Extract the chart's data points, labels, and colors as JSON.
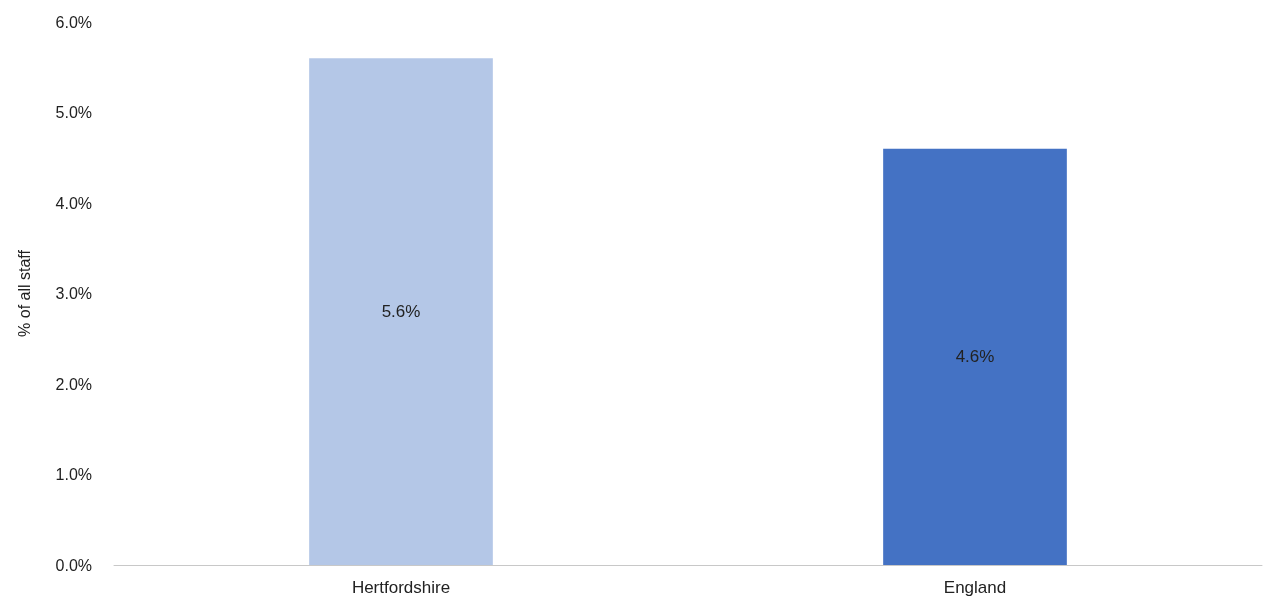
{
  "chart_data": {
    "type": "bar",
    "ylabel": "% of all staff",
    "categories": [
      "Hertfordshire",
      "England"
    ],
    "values": [
      5.6,
      4.6
    ],
    "colors": [
      "#b4c7e7",
      "#4472c4"
    ],
    "value_labels": [
      "5.6%",
      "4.6%"
    ],
    "ylim": [
      0,
      6
    ],
    "yticks": [
      {
        "value": 0,
        "label": "0.0%"
      },
      {
        "value": 1,
        "label": "1.0%"
      },
      {
        "value": 2,
        "label": "2.0%"
      },
      {
        "value": 3,
        "label": "3.0%"
      },
      {
        "value": 4,
        "label": "4.0%"
      },
      {
        "value": 5,
        "label": "5.0%"
      },
      {
        "value": 6,
        "label": "6.0%"
      }
    ],
    "grid": false
  }
}
